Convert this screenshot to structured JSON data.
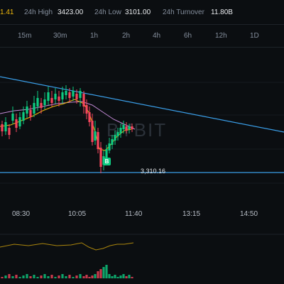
{
  "stats": {
    "price_fragment": "1.41",
    "high_label": "24h High",
    "high_value": "3423.00",
    "low_label": "24h Low",
    "low_value": "3101.00",
    "turnover_label": "24h Turnover",
    "turnover_value": "11.80B"
  },
  "timeframes": [
    "15m",
    "30m",
    "1h",
    "2h",
    "4h",
    "6h",
    "12h",
    "1D"
  ],
  "chart": {
    "level_label": "3,310.16",
    "signal_badge": "B",
    "watermark": "BYBIT",
    "x_labels": [
      "08:30",
      "10:05",
      "11:40",
      "13:15",
      "14:50"
    ]
  },
  "colors": {
    "up": "#0ecb81",
    "down": "#f6465d",
    "trendline": "#3a9ee8",
    "ma_fast": "#f0b90b",
    "ma_slow": "#c38ad6"
  }
}
